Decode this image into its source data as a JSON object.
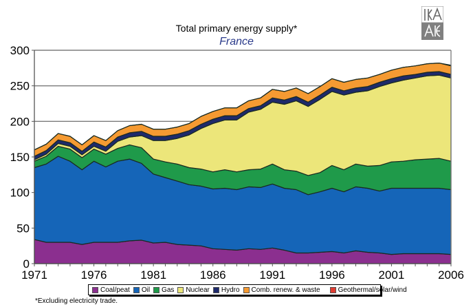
{
  "chart_data": {
    "type": "area",
    "stacked": true,
    "title": "Total primary energy supply*",
    "subtitle": "France",
    "xlabel": "",
    "ylabel": "",
    "ylim": [
      0,
      300
    ],
    "yticks": [
      0,
      50,
      100,
      150,
      200,
      250,
      300
    ],
    "xlim": [
      1971,
      2006
    ],
    "xticks": [
      1971,
      1976,
      1981,
      1986,
      1991,
      1996,
      2001,
      2006
    ],
    "grid": "horizontal",
    "legend_position": "bottom",
    "x": [
      1971,
      1972,
      1973,
      1974,
      1975,
      1976,
      1977,
      1978,
      1979,
      1980,
      1981,
      1982,
      1983,
      1984,
      1985,
      1986,
      1987,
      1988,
      1989,
      1990,
      1991,
      1992,
      1993,
      1994,
      1995,
      1996,
      1997,
      1998,
      1999,
      2000,
      2001,
      2002,
      2003,
      2004,
      2005,
      2006
    ],
    "series": [
      {
        "name": "Coal/peat",
        "color": "#8b2f8f",
        "values": [
          34,
          30,
          30,
          30,
          27,
          30,
          30,
          30,
          32,
          33,
          29,
          30,
          27,
          26,
          25,
          21,
          20,
          19,
          21,
          20,
          22,
          19,
          15,
          15,
          16,
          17,
          15,
          18,
          16,
          15,
          13,
          14,
          14,
          14,
          14,
          13
        ]
      },
      {
        "name": "Oil",
        "color": "#1565b8",
        "values": [
          101,
          110,
          121,
          114,
          105,
          114,
          106,
          114,
          115,
          108,
          97,
          91,
          89,
          85,
          84,
          84,
          86,
          85,
          87,
          87,
          90,
          87,
          89,
          82,
          85,
          89,
          86,
          90,
          90,
          87,
          93,
          92,
          92,
          92,
          92,
          91
        ]
      },
      {
        "name": "Gas",
        "color": "#1f9a4a",
        "values": [
          9,
          11,
          14,
          17,
          17,
          17,
          18,
          18,
          20,
          22,
          21,
          22,
          24,
          24,
          24,
          24,
          26,
          25,
          24,
          26,
          28,
          26,
          26,
          27,
          27,
          32,
          31,
          32,
          31,
          36,
          37,
          38,
          40,
          41,
          42,
          40
        ]
      },
      {
        "name": "Nuclear",
        "color": "#ece67a",
        "values": [
          2,
          3,
          4,
          4,
          4,
          4,
          4,
          10,
          11,
          17,
          26,
          30,
          36,
          46,
          57,
          68,
          70,
          73,
          81,
          84,
          87,
          92,
          99,
          97,
          103,
          104,
          105,
          101,
          106,
          111,
          111,
          114,
          115,
          117,
          117,
          117
        ]
      },
      {
        "name": "Hydro",
        "color": "#1e2a6b",
        "values": [
          5,
          5,
          5,
          5,
          5,
          6,
          6,
          6,
          6,
          6,
          6,
          6,
          6,
          6,
          6,
          6,
          6,
          6,
          5,
          5,
          6,
          6,
          6,
          6,
          6,
          6,
          6,
          6,
          6,
          6,
          6,
          6,
          5,
          5,
          5,
          5
        ]
      },
      {
        "name": "Comb. renew. & waste",
        "color": "#f59a32",
        "values": [
          9,
          9,
          9,
          9,
          9,
          9,
          9,
          9,
          10,
          10,
          10,
          10,
          10,
          10,
          11,
          11,
          11,
          11,
          11,
          11,
          12,
          12,
          12,
          12,
          12,
          12,
          12,
          12,
          12,
          11,
          12,
          12,
          12,
          12,
          12,
          12
        ]
      },
      {
        "name": "Geothermal/solar/wind",
        "color": "#e03c31",
        "values": [
          0,
          0,
          0,
          0,
          0,
          0,
          0,
          0,
          0,
          0,
          0,
          0,
          0,
          0,
          0,
          0,
          0,
          0,
          0,
          0,
          0,
          0,
          0,
          0,
          0,
          0,
          0,
          0,
          0,
          0,
          0,
          0,
          0,
          0,
          0,
          1
        ]
      }
    ],
    "footnote": "*Excluding electricity trade."
  },
  "logo": {
    "name": "IEA/AIE logo",
    "line1": "IEA",
    "line2": "AIE"
  }
}
